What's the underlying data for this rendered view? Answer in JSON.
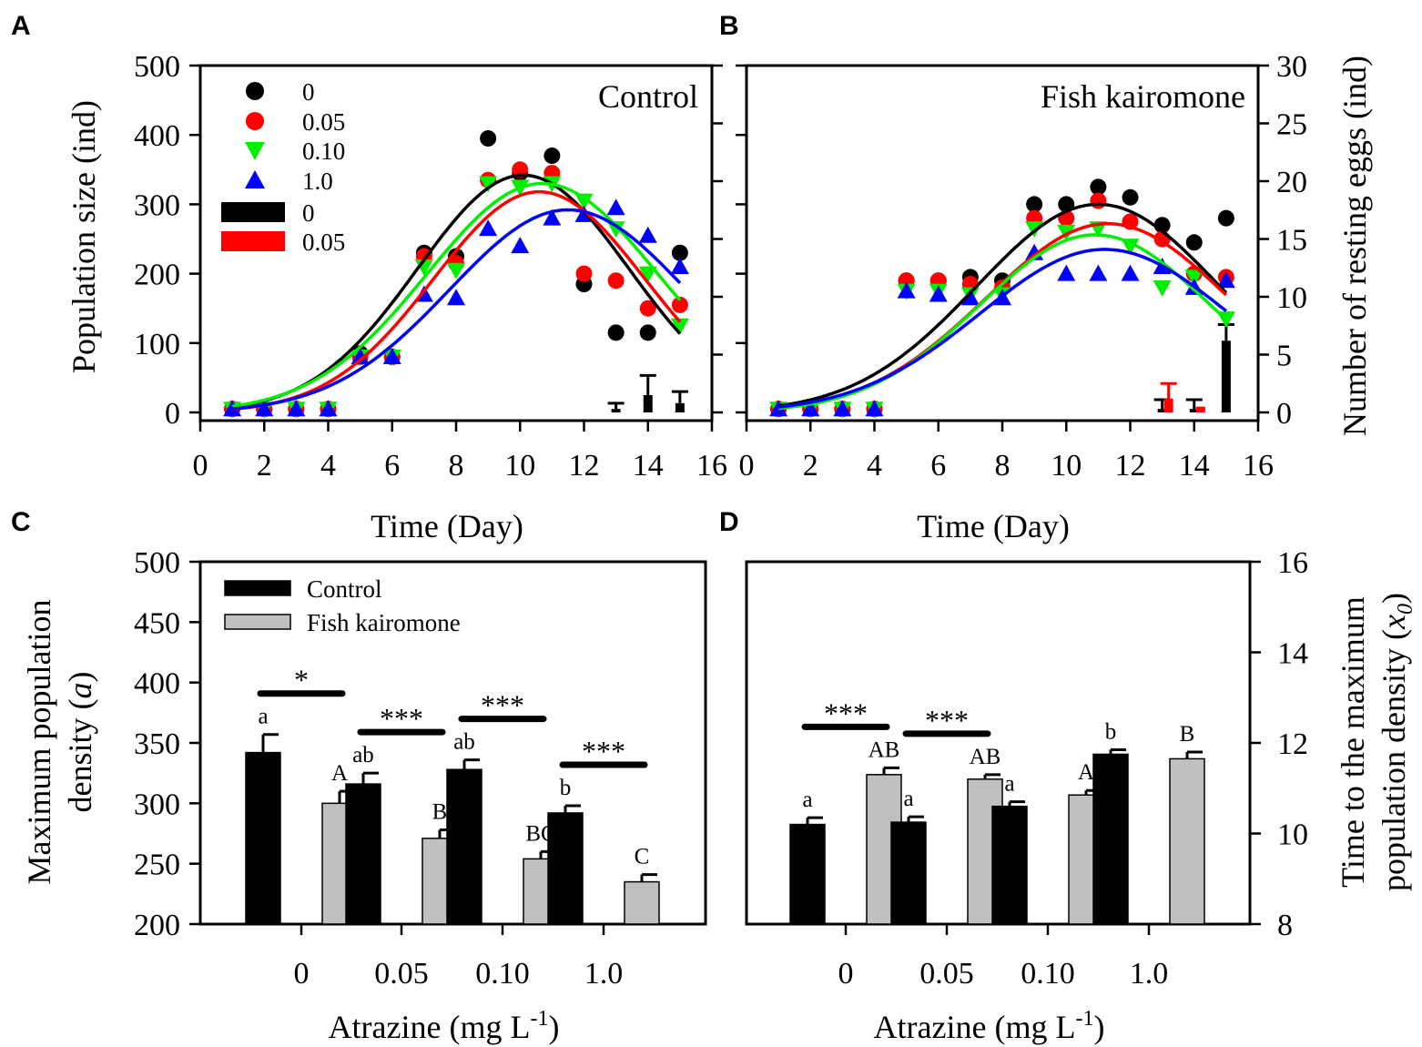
{
  "chart_data": [
    {
      "panel": "A",
      "type": "scatter",
      "title": "Control",
      "xlabel": "Time (Day)",
      "ylabel": "Population size (ind)",
      "xlim": [
        0,
        16
      ],
      "ylim": [
        0,
        500
      ],
      "xticks": [
        "0",
        "2",
        "4",
        "6",
        "8",
        "10",
        "12",
        "14",
        "16"
      ],
      "yticks": [
        "0",
        "100",
        "200",
        "300",
        "400",
        "500"
      ],
      "y2lim": [
        0,
        30
      ],
      "legend": {
        "markers": [
          "0",
          "0.05",
          "0.10",
          "1.0"
        ],
        "bars": [
          "0",
          "0.05"
        ]
      },
      "colors": {
        "s0": "#000000",
        "s005": "#ff0000",
        "s010": "#00ee00",
        "s1": "#0000ff"
      },
      "series": [
        {
          "name": "0",
          "marker": "circle",
          "values": [
            5,
            5,
            5,
            5,
            85,
            80,
            230,
            225,
            395,
            345,
            370,
            185,
            115,
            115,
            230
          ],
          "fit": {
            "a": 342,
            "x0": 10.1,
            "b": 3.3
          }
        },
        {
          "name": "0.05",
          "marker": "circle",
          "values": [
            5,
            5,
            5,
            5,
            80,
            80,
            225,
            215,
            335,
            350,
            345,
            200,
            190,
            150,
            155
          ],
          "fit": {
            "a": 318,
            "x0": 10.6,
            "b": 3.3
          }
        },
        {
          "name": "0.10",
          "marker": "triangle-down",
          "values": [
            5,
            5,
            5,
            5,
            80,
            80,
            210,
            205,
            330,
            325,
            330,
            305,
            265,
            200,
            125
          ],
          "fit": {
            "a": 330,
            "x0": 10.7,
            "b": 3.6
          }
        },
        {
          "name": "1.0",
          "marker": "triangle-up",
          "values": [
            5,
            5,
            5,
            5,
            80,
            80,
            170,
            165,
            265,
            240,
            280,
            285,
            295,
            255,
            210
          ],
          "fit": {
            "a": 292,
            "x0": 11.5,
            "b": 3.7
          }
        }
      ],
      "resting_eggs_bars": [
        {
          "series": "0",
          "day": 13,
          "value": 0.3,
          "error": 0.5
        },
        {
          "series": "0",
          "day": 14,
          "value": 1.5,
          "error": 1.7
        },
        {
          "series": "0",
          "day": 15,
          "value": 0.8,
          "error": 1.0
        }
      ]
    },
    {
      "panel": "B",
      "type": "scatter",
      "title": "Fish kairomone",
      "xlabel": "Time (Day)",
      "ylabel": "Number of resting eggs (ind)",
      "xlim": [
        0,
        16
      ],
      "ylim": [
        0,
        500
      ],
      "xticks": [
        "0",
        "2",
        "4",
        "6",
        "8",
        "10",
        "12",
        "14",
        "16"
      ],
      "y2ticks": [
        "0",
        "5",
        "10",
        "15",
        "20",
        "25",
        "30"
      ],
      "y2lim": [
        0,
        30
      ],
      "series": [
        {
          "name": "0",
          "marker": "circle",
          "values": [
            5,
            5,
            5,
            5,
            190,
            190,
            195,
            190,
            300,
            300,
            325,
            310,
            270,
            245,
            280
          ],
          "fit": {
            "a": 300,
            "x0": 11.0,
            "b": 3.8
          }
        },
        {
          "name": "0.05",
          "marker": "circle",
          "values": [
            5,
            5,
            5,
            5,
            190,
            190,
            185,
            180,
            280,
            280,
            305,
            275,
            250,
            200,
            195
          ],
          "fit": {
            "a": 272,
            "x0": 11.3,
            "b": 3.8
          }
        },
        {
          "name": "0.10",
          "marker": "triangle-down",
          "values": [
            5,
            5,
            5,
            5,
            175,
            175,
            170,
            170,
            265,
            260,
            265,
            240,
            180,
            195,
            135
          ],
          "fit": {
            "a": 256,
            "x0": 10.9,
            "b": 3.6
          }
        },
        {
          "name": "1.0",
          "marker": "triangle-up",
          "values": [
            5,
            5,
            5,
            5,
            175,
            170,
            165,
            165,
            230,
            200,
            200,
            200,
            210,
            180,
            190
          ],
          "fit": {
            "a": 235,
            "x0": 11.2,
            "b": 3.9
          }
        }
      ],
      "resting_eggs_bars": [
        {
          "series": "0",
          "day": 13,
          "value": 0.3,
          "error": 0.8
        },
        {
          "series": "0.05",
          "day": 13.2,
          "value": 1.2,
          "error": 1.3
        },
        {
          "series": "0",
          "day": 14,
          "value": 0.3,
          "error": 0.8
        },
        {
          "series": "0.05",
          "day": 14.2,
          "value": 0.5,
          "error": 0
        },
        {
          "series": "0",
          "day": 15,
          "value": 6.2,
          "error": 1.4
        }
      ]
    },
    {
      "panel": "C",
      "type": "bar",
      "xlabel": "Atrazine (mg L",
      "xlabel_sup": "-1",
      "xlabel_end": ")",
      "ylabel_line1": "Maximum population",
      "ylabel_line2_pre": "density (",
      "ylabel_italic": "a",
      "ylabel_line2_post": ")",
      "categories": [
        "0",
        "0.05",
        "0.10",
        "1.0"
      ],
      "ylim": [
        200,
        500
      ],
      "yticks": [
        "200",
        "250",
        "300",
        "350",
        "400",
        "450",
        "500"
      ],
      "legend": [
        "Control",
        "Fish kairomone"
      ],
      "series": [
        {
          "name": "Control",
          "color": "#000000",
          "values": [
            342,
            316,
            328,
            292
          ],
          "errors": [
            15,
            9,
            8,
            6
          ],
          "letters": [
            "a",
            "ab",
            "ab",
            "b"
          ]
        },
        {
          "name": "Fish kairomone",
          "color": "#c0c0c0",
          "values": [
            300,
            271,
            254,
            235
          ],
          "errors": [
            10,
            7,
            6,
            6
          ],
          "letters": [
            "A",
            "B",
            "BC",
            "C"
          ]
        }
      ],
      "significance": [
        "*",
        "***",
        "***",
        "***"
      ]
    },
    {
      "panel": "D",
      "type": "bar",
      "xlabel": "Atrazine (mg L",
      "xlabel_sup": "-1",
      "xlabel_end": ")",
      "ylabel_line1": "Time to the maximum",
      "ylabel_line2_pre": "population density (",
      "ylabel_italic": "x",
      "ylabel_sub": "0",
      "ylabel_line2_post": ")",
      "categories": [
        "0",
        "0.05",
        "0.10",
        "1.0"
      ],
      "ylim": [
        8,
        16
      ],
      "yticks": [
        "8",
        "10",
        "12",
        "14",
        "16"
      ],
      "series": [
        {
          "name": "Control",
          "color": "#000000",
          "values": [
            10.2,
            10.25,
            10.6,
            11.75
          ],
          "errors": [
            0.15,
            0.12,
            0.1,
            0.1
          ],
          "letters": [
            "a",
            "a",
            "a",
            "b"
          ]
        },
        {
          "name": "Fish kairomone",
          "color": "#c0c0c0",
          "values": [
            11.3,
            11.2,
            10.85,
            11.65
          ],
          "errors": [
            0.15,
            0.1,
            0.1,
            0.15
          ],
          "letters": [
            "AB",
            "AB",
            "A",
            "B"
          ]
        }
      ],
      "significance": [
        "***",
        "***",
        "",
        ""
      ]
    }
  ]
}
